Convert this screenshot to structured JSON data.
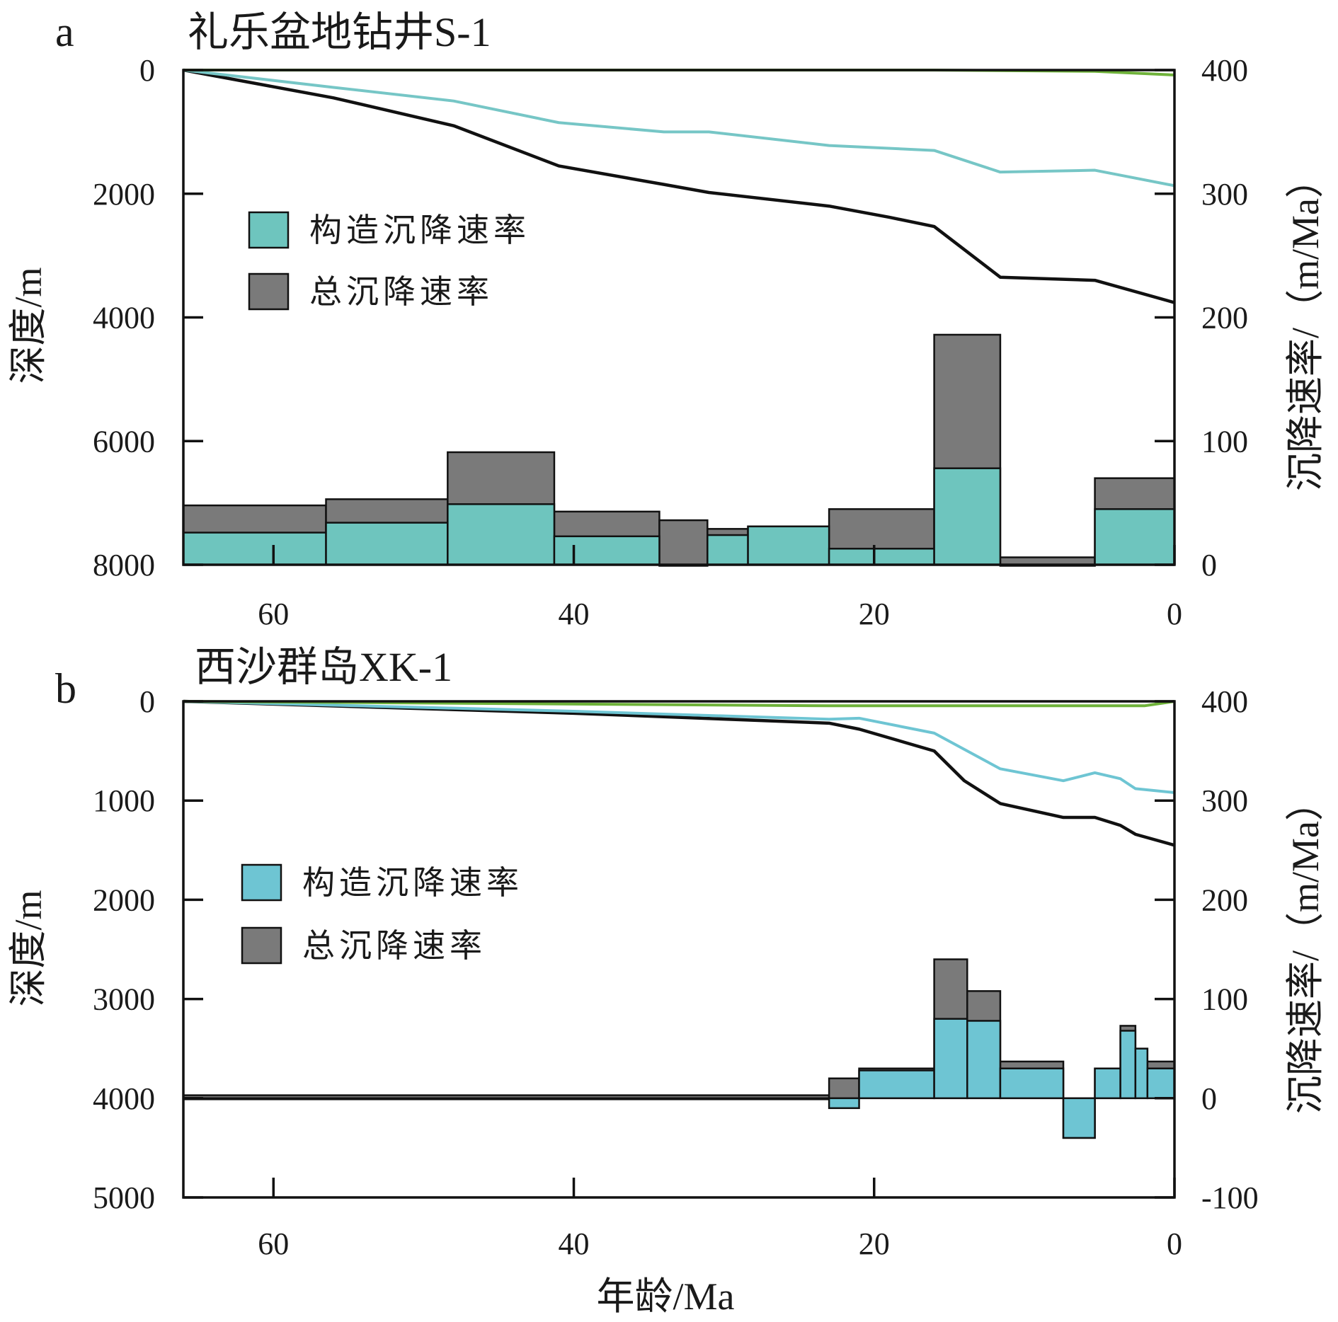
{
  "chart_data": [
    {
      "type": "line",
      "panel_letter": "a",
      "title": "礼乐盆地钻井S-1",
      "xlabel": "",
      "ylabel": "深度/m",
      "y2label": "沉降速率/（m/Ma）",
      "xlim": [
        66,
        0
      ],
      "ylim": [
        0,
        8000
      ],
      "y2lim": [
        0,
        400
      ],
      "xticks": [
        60,
        40,
        20,
        0
      ],
      "yticks": [
        0,
        2000,
        4000,
        6000,
        8000
      ],
      "y2ticks": [
        0,
        100,
        200,
        300,
        400
      ],
      "legend": [
        "构造沉降速率",
        "总沉降速率"
      ],
      "legend_position": "left",
      "colors": {
        "tectonic": "#6ec5be",
        "total": "#7a7a7a",
        "curve_total": "#111111",
        "curve_tectonic": "#76c6c6",
        "curve_green": "#6fb23a"
      },
      "series": [
        {
          "name": "",
          "role": "total_subsidence_curve",
          "color": "#111111",
          "x": [
            66,
            56,
            48,
            41,
            34,
            31,
            23,
            19,
            16,
            11.6,
            5.3,
            0
          ],
          "y": [
            0,
            450,
            900,
            1550,
            1850,
            1980,
            2200,
            2380,
            2530,
            3350,
            3400,
            3760
          ]
        },
        {
          "name": "",
          "role": "tectonic_subsidence_curve",
          "color": "#76c6c6",
          "x": [
            66,
            56,
            48,
            41,
            34,
            31,
            23,
            16,
            11.6,
            5.3,
            0
          ],
          "y": [
            0,
            280,
            500,
            850,
            1000,
            1000,
            1220,
            1300,
            1650,
            1620,
            1870
          ]
        },
        {
          "name": "",
          "role": "water_depth_curve",
          "color": "#6fb23a",
          "x": [
            66,
            16,
            5.3,
            0
          ],
          "y": [
            0,
            0,
            20,
            80
          ]
        },
        {
          "name": "总沉降速率",
          "type": "step_bar",
          "axis": "y2",
          "color": "#7a7a7a",
          "x_edges": [
            66,
            56.5,
            48.4,
            41.3,
            34.3,
            31.1,
            28.4,
            23.0,
            16.0,
            11.6,
            5.3,
            0
          ],
          "values": [
            48,
            53,
            91,
            43,
            36,
            29,
            31,
            45,
            186,
            6,
            70
          ]
        },
        {
          "name": "构造沉降速率",
          "type": "step_bar",
          "axis": "y2",
          "color": "#6ec5be",
          "x_edges": [
            66,
            56.5,
            48.4,
            41.3,
            34.3,
            31.1,
            28.4,
            23.0,
            16.0,
            11.6,
            5.3,
            0
          ],
          "values": [
            26,
            34,
            49,
            23,
            0,
            24,
            31,
            13,
            78,
            0,
            45
          ]
        }
      ]
    },
    {
      "type": "line",
      "panel_letter": "b",
      "title": "西沙群岛XK-1",
      "xlabel": "年龄/Ma",
      "ylabel": "深度/m",
      "y2label": "沉降速率/（m/Ma）",
      "xlim": [
        66,
        0
      ],
      "ylim": [
        0,
        5000
      ],
      "y2lim": [
        -100,
        400
      ],
      "xticks": [
        60,
        40,
        20,
        0
      ],
      "yticks": [
        0,
        1000,
        2000,
        3000,
        4000,
        5000
      ],
      "y2ticks": [
        -100,
        0,
        100,
        200,
        300,
        400
      ],
      "legend": [
        "构造沉降速率",
        "总沉降速率"
      ],
      "legend_position": "left",
      "colors": {
        "tectonic": "#6ec5d3",
        "total": "#7a7a7a",
        "curve_total": "#111111",
        "curve_tectonic": "#6ec5d3",
        "curve_green": "#6fb23a"
      },
      "series": [
        {
          "name": "",
          "role": "total_subsidence_curve",
          "color": "#111111",
          "x": [
            66,
            40,
            23,
            21,
            16,
            14,
            11.6,
            7.4,
            5.3,
            3.6,
            2.6,
            0
          ],
          "y": [
            0,
            120,
            220,
            280,
            500,
            800,
            1030,
            1170,
            1170,
            1250,
            1340,
            1450
          ]
        },
        {
          "name": "",
          "role": "tectonic_subsidence_curve",
          "color": "#6ec5d3",
          "x": [
            66,
            40,
            23,
            21,
            16,
            11.6,
            7.4,
            5.3,
            3.6,
            2.6,
            0
          ],
          "y": [
            0,
            100,
            180,
            170,
            320,
            680,
            800,
            720,
            780,
            880,
            920
          ]
        },
        {
          "name": "",
          "role": "water_depth_curve",
          "color": "#6fb23a",
          "x": [
            66,
            23,
            2,
            0
          ],
          "y": [
            0,
            45,
            45,
            0
          ]
        },
        {
          "name": "总沉降速率",
          "type": "step_bar",
          "axis": "y2",
          "color": "#7a7a7a",
          "x_edges": [
            66,
            23.0,
            21.0,
            16.0,
            13.8,
            11.6,
            7.4,
            5.3,
            3.6,
            2.6,
            1.8,
            0
          ],
          "values": [
            3,
            20,
            30,
            140,
            108,
            37,
            -40,
            30,
            73,
            50,
            37
          ]
        },
        {
          "name": "构造沉降速率",
          "type": "step_bar",
          "axis": "y2",
          "color": "#6ec5d3",
          "x_edges": [
            66,
            23.0,
            21.0,
            16.0,
            13.8,
            11.6,
            7.4,
            5.3,
            3.6,
            2.6,
            1.8,
            0
          ],
          "values": [
            0,
            -10,
            28,
            80,
            78,
            30,
            -40,
            30,
            68,
            50,
            30
          ]
        }
      ]
    }
  ]
}
